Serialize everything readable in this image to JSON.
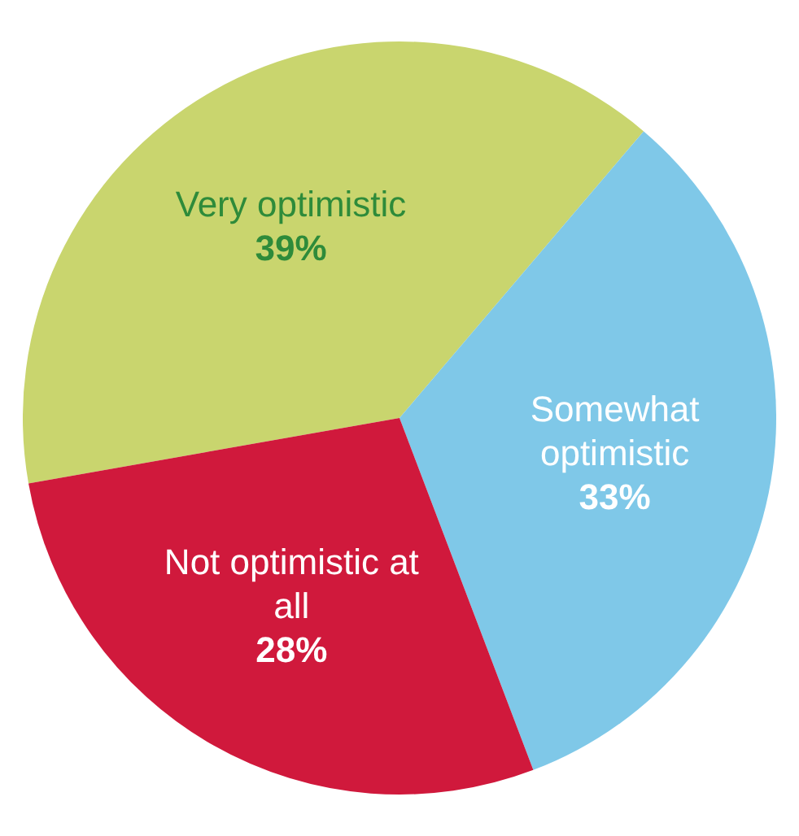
{
  "chart_data": {
    "type": "pie",
    "categories": [
      "Very optimistic",
      "Somewhat optimistic",
      "Not optimistic at all"
    ],
    "values": [
      39,
      33,
      28
    ],
    "colors": [
      "#c9d56e",
      "#7fc8e8",
      "#d0193c"
    ],
    "value_labels": [
      "39%",
      "33%",
      "28%"
    ],
    "legend": false
  }
}
